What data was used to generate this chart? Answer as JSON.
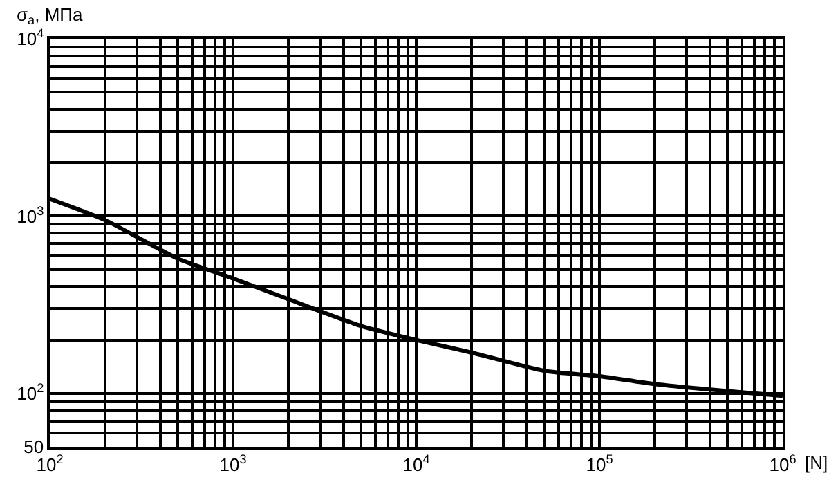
{
  "chart_data": {
    "type": "line",
    "xlabel": "[N]",
    "ylabel": "σ$_{a}$, МПа",
    "log": "xy",
    "grid": true,
    "legend": false,
    "marker": "none",
    "line_style": "solid",
    "x": [
      100,
      200,
      500,
      1000,
      2000,
      5000,
      10000,
      20000,
      50000,
      100000,
      200000,
      500000,
      1000000
    ],
    "series": [
      {
        "color": "#000000",
        "values": [
          1250,
          950,
          575,
          445,
          340,
          240,
          200,
          170,
          134,
          125,
          113,
          103,
          97
        ]
      }
    ],
    "xlim": [
      100,
      1000000
    ],
    "ylim": [
      50,
      10000
    ],
    "xticks": [
      {
        "value": 100,
        "label": "10$^{2}$"
      },
      {
        "value": 1000,
        "label": "10$^{3}$"
      },
      {
        "value": 10000,
        "label": "10$^{4}$"
      },
      {
        "value": 100000,
        "label": "10$^{5}$"
      },
      {
        "value": 1000000,
        "label": "10$^{6}$"
      }
    ],
    "yticks": [
      50,
      {
        "value": 100,
        "label": "10$^{2}$"
      },
      {
        "value": 1000,
        "label": "10$^{3}$"
      },
      {
        "value": 10000,
        "label": "10$^{4}$"
      }
    ]
  }
}
